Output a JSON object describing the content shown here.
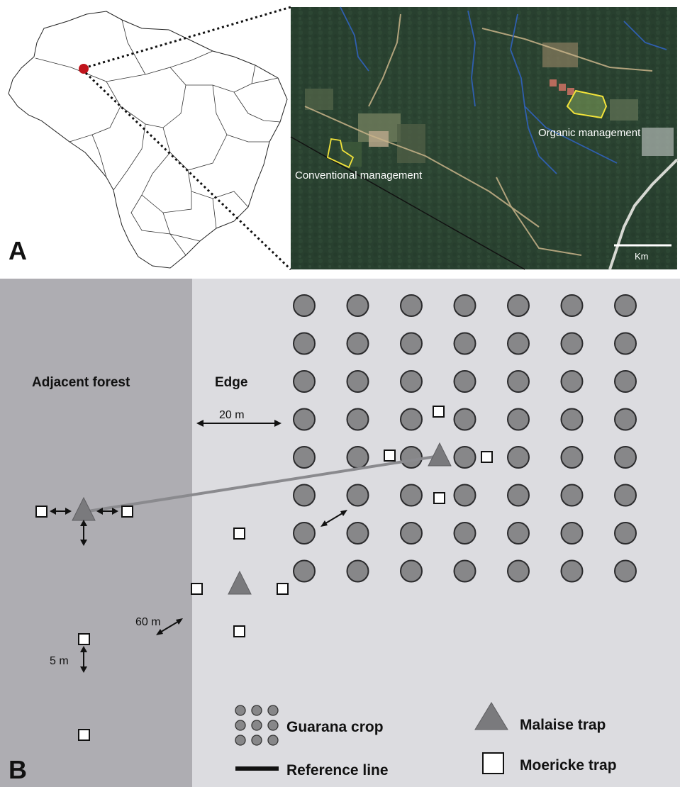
{
  "panel_a": {
    "label": "A",
    "satellite": {
      "conventional_label": "Conventional management",
      "organic_label": "Organic management",
      "scale_unit": "Km"
    }
  },
  "panel_b": {
    "label": "B",
    "zone_forest_label": "Adjacent forest",
    "zone_edge_label": "Edge",
    "dist_20m": "20 m",
    "dist_60m": "60 m",
    "dist_5m": "5 m",
    "legend": {
      "crop": "Guarana crop",
      "reference_line": "Reference line",
      "malaise": "Malaise trap",
      "moericke": "Moericke trap"
    }
  },
  "colors": {
    "forest_zone": "#aeadb2",
    "field_zone": "#dcdce0",
    "crop_fill": "#878789",
    "malaise_fill": "#7a7a7d",
    "location_dot": "#c0141c",
    "polygon_highlight": "#f2e33a"
  }
}
